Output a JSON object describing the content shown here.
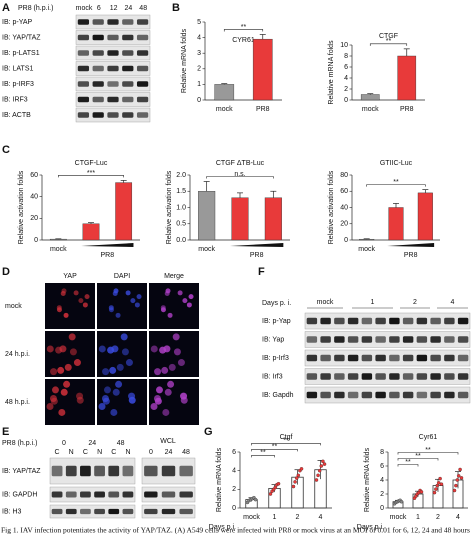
{
  "panel_labels": [
    "A",
    "B",
    "C",
    "D",
    "E",
    "F",
    "G"
  ],
  "blot_a": {
    "header": "PR8 (h.p.i.)",
    "lanes": [
      "mock",
      "6",
      "12",
      "24",
      "48"
    ],
    "rows": [
      "IB: p-YAP",
      "IB: YAP/TAZ",
      "IB: p-LATS1",
      "IB: LATS1",
      "IB: p-IRF3",
      "IB: IRF3",
      "IB: ACTB"
    ]
  },
  "chart_data": [
    {
      "type": "bar",
      "title": "CYR61",
      "y_label": "Relative mRNA folds",
      "categories": [
        "mock",
        "PR8"
      ],
      "values": [
        1.0,
        3.9
      ],
      "errors": [
        0.05,
        0.3
      ],
      "colors": [
        "#999999",
        "#e83a3a"
      ],
      "ylim": [
        0,
        5
      ],
      "yticks": [
        0,
        1,
        2,
        3,
        4,
        5
      ],
      "annotations": [
        "**"
      ]
    },
    {
      "type": "bar",
      "title": "CTGF",
      "y_label": "Relative mRNA folds",
      "categories": [
        "mock",
        "PR8"
      ],
      "values": [
        1.0,
        8.0
      ],
      "errors": [
        0.15,
        1.3
      ],
      "colors": [
        "#999999",
        "#e83a3a"
      ],
      "ylim": [
        0,
        10
      ],
      "yticks": [
        0,
        2,
        4,
        6,
        8,
        10
      ],
      "annotations": [
        "**"
      ]
    },
    {
      "type": "bar",
      "title": "CTGF-Luc",
      "y_label": "Relative activation folds",
      "categories": [
        "mock",
        null,
        null
      ],
      "group_label": "PR8",
      "values": [
        0.8,
        15,
        53
      ],
      "errors": [
        0.3,
        1,
        2
      ],
      "colors": [
        "#999999",
        "#e83a3a",
        "#e83a3a"
      ],
      "ylim": [
        0,
        60
      ],
      "yticks": [
        0,
        20,
        40,
        60
      ],
      "annotations": [
        "***"
      ]
    },
    {
      "type": "bar",
      "title": "CTGF ΔTB-Luc",
      "y_label": "Relative activation folds",
      "categories": [
        "mock",
        null,
        null
      ],
      "group_label": "PR8",
      "values": [
        1.5,
        1.3,
        1.3
      ],
      "errors": [
        0.3,
        0.15,
        0.2
      ],
      "colors": [
        "#999999",
        "#e83a3a",
        "#e83a3a"
      ],
      "ylim": [
        0,
        2
      ],
      "yticks": [
        {
          "value": 0,
          "label": "0.0"
        },
        {
          "value": 0.5,
          "label": "0.5"
        },
        {
          "value": 1,
          "label": "1.0"
        },
        1.5,
        {
          "value": 2,
          "label": "2.0"
        }
      ],
      "annotations": [
        "n.s."
      ]
    },
    {
      "type": "bar",
      "title": "GTIIC-Luc",
      "y_label": "Relative activation folds",
      "categories": [
        "mock",
        null,
        null
      ],
      "group_label": "PR8",
      "values": [
        1,
        40,
        58
      ],
      "errors": [
        0.5,
        5,
        4
      ],
      "colors": [
        "#999999",
        "#e83a3a",
        "#e83a3a"
      ],
      "ylim": [
        0,
        80
      ],
      "yticks": [
        0,
        20,
        40,
        60,
        80
      ],
      "annotations": [
        "**"
      ]
    },
    {
      "type": "dotbar",
      "title": "Ctgf",
      "y_label": "Relative mRNA folds",
      "x_label": "Days p.i.",
      "categories": [
        "mock",
        "1",
        "2",
        "4"
      ],
      "values": [
        0.9,
        2.1,
        3.3,
        4.1
      ],
      "errors": [
        0.2,
        0.4,
        0.8,
        1.0
      ],
      "points": [
        [
          0.6,
          0.8,
          0.9,
          1.0,
          1.1,
          0.9
        ],
        [
          1.5,
          1.8,
          2.0,
          2.2,
          2.5,
          2.6
        ],
        [
          2.3,
          2.8,
          3.2,
          3.5,
          4.0,
          4.2
        ],
        [
          3.0,
          3.5,
          4.0,
          4.5,
          5.0,
          4.7
        ]
      ],
      "colors": [
        "#888888",
        "#e83a3a",
        "#e83a3a",
        "#e83a3a"
      ],
      "ylim": [
        0,
        6
      ],
      "yticks": [
        0,
        2,
        4,
        6
      ],
      "annotations": [
        "**",
        "**",
        "**"
      ]
    },
    {
      "type": "dotbar",
      "title": "Cyr61",
      "y_label": "Relative mRNA folds",
      "x_label": "Days p.i.",
      "categories": [
        "mock",
        "1",
        "2",
        "4"
      ],
      "values": [
        0.9,
        2.0,
        3.2,
        4.0
      ],
      "errors": [
        0.2,
        0.4,
        0.9,
        1.2
      ],
      "points": [
        [
          0.6,
          0.8,
          0.9,
          1.0,
          1.1,
          0.9
        ],
        [
          1.4,
          1.7,
          2.0,
          2.2,
          2.5,
          2.3
        ],
        [
          2.2,
          2.7,
          3.2,
          3.6,
          4.2,
          3.4
        ],
        [
          2.5,
          3.2,
          4.0,
          4.6,
          5.5,
          4.3
        ]
      ],
      "colors": [
        "#888888",
        "#e83a3a",
        "#e83a3a",
        "#e83a3a"
      ],
      "ylim": [
        0,
        8
      ],
      "yticks": [
        0,
        2,
        4,
        6,
        8
      ],
      "annotations": [
        "**",
        "**",
        "**"
      ]
    }
  ],
  "microscopy_d": {
    "columns": [
      "YAP",
      "DAPI",
      "Merge"
    ],
    "rows": [
      "mock",
      "24 h.p.i.",
      "48 h.p.i."
    ]
  },
  "blot_e": {
    "header": "PR8 (h.p.i.)",
    "timepoints": [
      "0",
      "24",
      "48"
    ],
    "fractions": [
      "C",
      "N",
      "C",
      "N",
      "C",
      "N"
    ],
    "wcl_title": "WCL",
    "wcl_lanes": [
      "0",
      "24",
      "48"
    ],
    "rows": [
      "IB: YAP/TAZ",
      "IB: GAPDH",
      "IB: H3"
    ]
  },
  "blot_f": {
    "header": "Days p. i.",
    "groups": [
      "mock",
      "1",
      "2",
      "4"
    ],
    "rows": [
      "IB: p-Yap",
      "IB: Yap",
      "IB: p-Irf3",
      "IB: Irf3",
      "IB: Gapdh"
    ]
  },
  "caption": "Fig 1. IAV infection potentiates the activity of YAP/TAZ. (A) A549 cells were infected with PR8 or mock virus at an MOI of 0.01 for 6, 12, 24 and 48 hours"
}
